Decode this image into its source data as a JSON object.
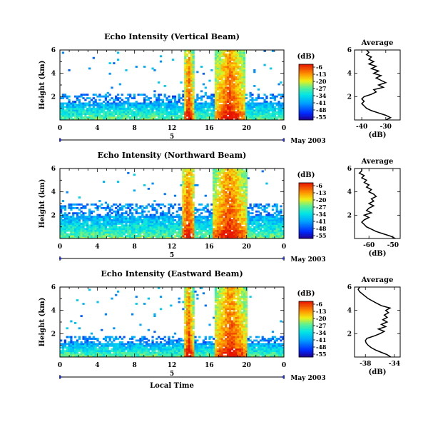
{
  "chart_data": [
    {
      "type": "heatmap",
      "title": "Echo Intensity (Vertical Beam)",
      "ylabel": "Height (km)",
      "xlabel": "",
      "x_ticks": [
        "0",
        "4",
        "8",
        "12",
        "16",
        "20",
        "0"
      ],
      "y_ticks": [
        "2",
        "4",
        "6"
      ],
      "xlim": [
        0,
        24
      ],
      "ylim": [
        0,
        6
      ],
      "date_label": "5",
      "month_label": "May 2003",
      "colorbar_unit": "(dB)",
      "colorbar_ticks": [
        "-6",
        "-13",
        "-20",
        "-27",
        "-34",
        "-41",
        "-48",
        "-55"
      ],
      "data": {
        "clear_top": 2.2,
        "low_layer_top": 1.5,
        "events": [
          {
            "start": 13.3,
            "end": 14.3,
            "top": 6.0,
            "peak": -6
          },
          {
            "start": 16.6,
            "end": 19.8,
            "top": 6.0,
            "peak": -6
          }
        ]
      },
      "average": {
        "title": "Average",
        "xlabel": "(dB)",
        "x_ticks": [
          "-40",
          "-30"
        ],
        "xlim": [
          -43,
          -24
        ],
        "y_ticks": [
          "2",
          "4",
          "6"
        ],
        "profile": [
          [
            0.0,
            -30
          ],
          [
            0.2,
            -28
          ],
          [
            0.4,
            -30
          ],
          [
            0.6,
            -33
          ],
          [
            0.8,
            -36
          ],
          [
            1.0,
            -38
          ],
          [
            1.2,
            -39
          ],
          [
            1.4,
            -40
          ],
          [
            1.6,
            -39
          ],
          [
            1.8,
            -40
          ],
          [
            2.0,
            -39
          ],
          [
            2.2,
            -36
          ],
          [
            2.4,
            -34
          ],
          [
            2.6,
            -35
          ],
          [
            2.8,
            -31
          ],
          [
            3.0,
            -33
          ],
          [
            3.2,
            -30
          ],
          [
            3.4,
            -32
          ],
          [
            3.6,
            -34
          ],
          [
            3.8,
            -32
          ],
          [
            4.0,
            -35
          ],
          [
            4.2,
            -33
          ],
          [
            4.4,
            -36
          ],
          [
            4.6,
            -34
          ],
          [
            4.8,
            -37
          ],
          [
            5.0,
            -35
          ],
          [
            5.2,
            -37
          ],
          [
            5.4,
            -36
          ],
          [
            5.6,
            -38
          ],
          [
            5.8,
            -37
          ],
          [
            6.0,
            -38
          ]
        ]
      }
    },
    {
      "type": "heatmap",
      "title": "Echo Intensity (Northward Beam)",
      "ylabel": "Height (km)",
      "xlabel": "",
      "x_ticks": [
        "0",
        "4",
        "8",
        "12",
        "16",
        "20",
        "0"
      ],
      "y_ticks": [
        "2",
        "4",
        "6"
      ],
      "xlim": [
        0,
        24
      ],
      "ylim": [
        0,
        6
      ],
      "date_label": "5",
      "month_label": "May 2003",
      "colorbar_unit": "(dB)",
      "colorbar_ticks": [
        "-6",
        "-13",
        "-20",
        "-27",
        "-34",
        "-41",
        "-48",
        "-55"
      ],
      "data": {
        "clear_top": 3.0,
        "low_layer_top": 2.0,
        "events": [
          {
            "start": 13.0,
            "end": 14.5,
            "top": 6.0,
            "peak": -6
          },
          {
            "start": 16.3,
            "end": 20.0,
            "top": 6.0,
            "peak": -6
          }
        ]
      },
      "average": {
        "title": "Average",
        "xlabel": "(dB)",
        "x_ticks": [
          "-60",
          "-50"
        ],
        "xlim": [
          -66,
          -47
        ],
        "y_ticks": [
          "2",
          "4",
          "6"
        ],
        "profile": [
          [
            0.0,
            -49
          ],
          [
            0.2,
            -51
          ],
          [
            0.4,
            -54
          ],
          [
            0.6,
            -57
          ],
          [
            0.8,
            -59
          ],
          [
            1.0,
            -61
          ],
          [
            1.2,
            -62
          ],
          [
            1.4,
            -63
          ],
          [
            1.6,
            -62
          ],
          [
            1.8,
            -60
          ],
          [
            2.0,
            -62
          ],
          [
            2.2,
            -59
          ],
          [
            2.4,
            -61
          ],
          [
            2.6,
            -60
          ],
          [
            2.8,
            -58
          ],
          [
            3.0,
            -60
          ],
          [
            3.2,
            -58
          ],
          [
            3.4,
            -59
          ],
          [
            3.6,
            -57
          ],
          [
            3.8,
            -58
          ],
          [
            4.0,
            -60
          ],
          [
            4.2,
            -59
          ],
          [
            4.4,
            -61
          ],
          [
            4.6,
            -60
          ],
          [
            4.8,
            -62
          ],
          [
            5.0,
            -61
          ],
          [
            5.2,
            -63
          ],
          [
            5.4,
            -62
          ],
          [
            5.6,
            -64
          ],
          [
            5.8,
            -63
          ],
          [
            6.0,
            -63
          ]
        ]
      }
    },
    {
      "type": "heatmap",
      "title": "Echo Intensity (Eastward Beam)",
      "ylabel": "Height (km)",
      "xlabel": "Local Time",
      "x_ticks": [
        "0",
        "4",
        "8",
        "12",
        "16",
        "20",
        "0"
      ],
      "y_ticks": [
        "2",
        "4",
        "6"
      ],
      "xlim": [
        0,
        24
      ],
      "ylim": [
        0,
        6
      ],
      "date_label": "5",
      "month_label": "May 2003",
      "colorbar_unit": "(dB)",
      "colorbar_ticks": [
        "-6",
        "-13",
        "-20",
        "-27",
        "-34",
        "-41",
        "-48",
        "-55"
      ],
      "data": {
        "clear_top": 1.8,
        "low_layer_top": 1.2,
        "events": [
          {
            "start": 13.3,
            "end": 14.3,
            "top": 6.0,
            "peak": -6
          },
          {
            "start": 16.6,
            "end": 20.0,
            "top": 6.0,
            "peak": -6
          }
        ]
      },
      "average": {
        "title": "Average",
        "xlabel": "(dB)",
        "x_ticks": [
          "-38",
          "-34"
        ],
        "xlim": [
          -39.5,
          -33.2
        ],
        "y_ticks": [
          "2",
          "4",
          "6"
        ],
        "profile": [
          [
            0.0,
            -34.5
          ],
          [
            0.2,
            -35.0
          ],
          [
            0.4,
            -35.8
          ],
          [
            0.6,
            -36.6
          ],
          [
            0.8,
            -37.2
          ],
          [
            1.0,
            -37.6
          ],
          [
            1.2,
            -37.9
          ],
          [
            1.4,
            -38.0
          ],
          [
            1.6,
            -37.8
          ],
          [
            1.8,
            -36.8
          ],
          [
            2.0,
            -36.0
          ],
          [
            2.2,
            -35.4
          ],
          [
            2.4,
            -36.2
          ],
          [
            2.6,
            -35.2
          ],
          [
            2.8,
            -35.8
          ],
          [
            3.0,
            -35.0
          ],
          [
            3.2,
            -35.6
          ],
          [
            3.4,
            -35.0
          ],
          [
            3.6,
            -35.4
          ],
          [
            3.8,
            -34.8
          ],
          [
            4.0,
            -35.2
          ],
          [
            4.2,
            -34.6
          ],
          [
            4.4,
            -35.8
          ],
          [
            4.6,
            -36.4
          ],
          [
            4.8,
            -37.0
          ],
          [
            5.0,
            -37.6
          ],
          [
            5.2,
            -38.0
          ],
          [
            5.4,
            -38.4
          ],
          [
            5.6,
            -38.8
          ],
          [
            5.8,
            -39.0
          ],
          [
            6.0,
            -38.8
          ]
        ]
      }
    }
  ]
}
